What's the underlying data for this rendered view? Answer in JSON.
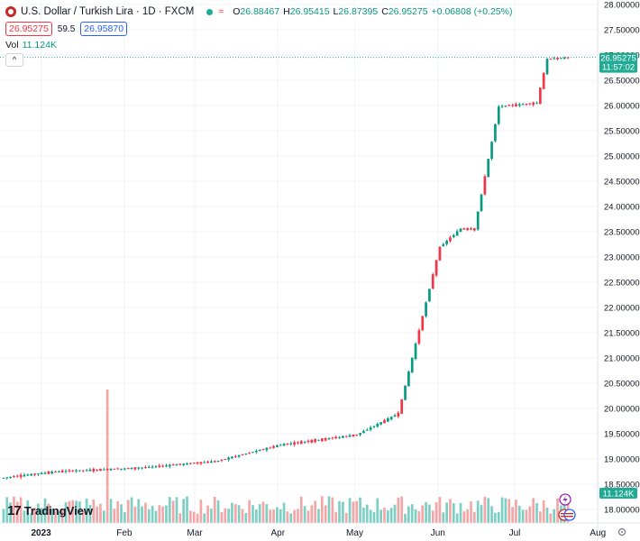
{
  "header": {
    "title": "U.S. Dollar / Turkish Lira · 1D · FXCM",
    "eq_icon": "=",
    "ohlc": [
      {
        "k": "O",
        "v": "26.88467"
      },
      {
        "k": "H",
        "v": "26.95415"
      },
      {
        "k": "L",
        "v": "26.87395"
      },
      {
        "k": "C",
        "v": "26.95275"
      }
    ],
    "change": "+0.06808 (+0.25%)",
    "sell": "26.95275",
    "spread": "59.5",
    "buy": "26.95870",
    "vol_label": "Vol",
    "vol_value": "11.124K",
    "collapse_icon": "^"
  },
  "colors": {
    "up": "#089981",
    "down": "#f23645",
    "vol_up": "#7dcfc3",
    "vol_down": "#f4a6a6"
  },
  "price_tag": {
    "price": "26.95275",
    "countdown": "11:57:02"
  },
  "vol_tag": "11.124K",
  "footer": {
    "logo": "TradingView",
    "logo_mark": "17"
  },
  "chart_data": {
    "type": "candlestick",
    "y_axis_labels": [
      "28.00000",
      "27.50000",
      "27.00000",
      "26.50000",
      "26.00000",
      "25.50000",
      "25.00000",
      "24.50000",
      "24.00000",
      "23.50000",
      "23.00000",
      "22.50000",
      "22.00000",
      "21.50000",
      "21.00000",
      "20.50000",
      "20.00000",
      "19.50000",
      "19.00000",
      "18.50000",
      "18.00000"
    ],
    "ylim": [
      18.0,
      28.0
    ],
    "x_axis_labels": [
      {
        "label": "2023",
        "at": 0.06
      },
      {
        "label": "Feb",
        "at": 0.19
      },
      {
        "label": "Mar",
        "at": 0.3
      },
      {
        "label": "Apr",
        "at": 0.43
      },
      {
        "label": "May",
        "at": 0.55
      },
      {
        "label": "Jun",
        "at": 0.68
      },
      {
        "label": "Jul",
        "at": 0.8
      },
      {
        "label": "Aug",
        "at": 0.93
      }
    ],
    "x_axis_right_icon": "gear-icon",
    "last_price": 26.95275,
    "segments": [
      {
        "days": 16,
        "start": 18.62,
        "end": 18.75
      },
      {
        "days": 23,
        "start": 18.75,
        "end": 18.82
      },
      {
        "days": 23,
        "start": 18.82,
        "end": 18.95
      },
      {
        "days": 19,
        "start": 18.95,
        "end": 19.28
      },
      {
        "days": 22,
        "start": 19.28,
        "end": 19.48
      },
      {
        "days": 12,
        "start": 19.48,
        "end": 19.9
      },
      {
        "days": 12,
        "start": 19.9,
        "end": 23.2
      },
      {
        "days": 6,
        "start": 23.2,
        "end": 23.56
      },
      {
        "days": 4,
        "start": 23.56,
        "end": 23.55
      },
      {
        "days": 7,
        "start": 23.55,
        "end": 25.98
      },
      {
        "days": 11,
        "start": 25.98,
        "end": 26.05
      },
      {
        "days": 3,
        "start": 26.05,
        "end": 26.92
      },
      {
        "days": 6,
        "start": 26.92,
        "end": 26.95
      }
    ],
    "volume_spikes": [
      {
        "day": 30,
        "value": 80
      }
    ],
    "volume_base": 20
  }
}
